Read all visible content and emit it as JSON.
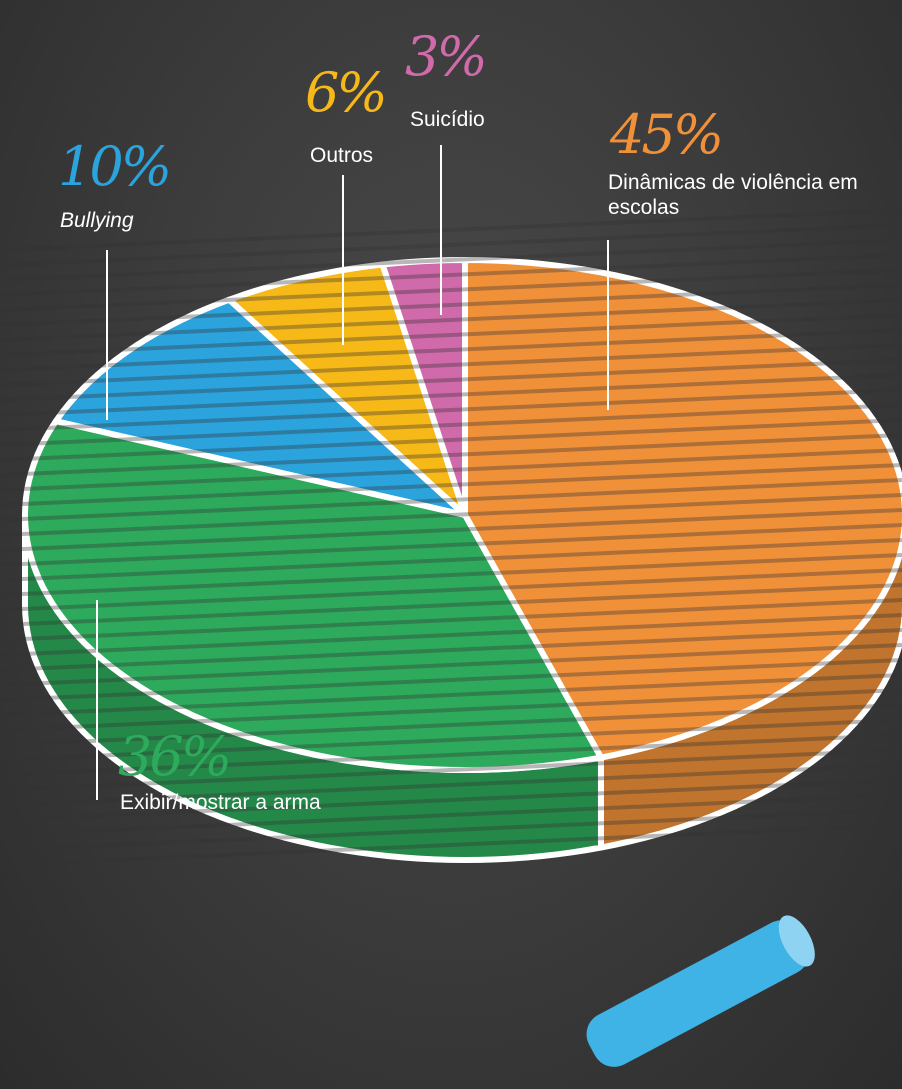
{
  "chart_data": {
    "type": "pie",
    "categories": [
      "Dinâmicas de violência em escolas",
      "Exibir/mostrar a arma",
      "Bullying",
      "Outros",
      "Suicídio"
    ],
    "values": [
      45,
      36,
      10,
      6,
      3
    ],
    "value_labels": [
      "45%",
      "36%",
      "10%",
      "6%",
      "3%"
    ],
    "colors": [
      "#f0913a",
      "#2daa5c",
      "#2ba3dc",
      "#f7b918",
      "#d16aaa"
    ]
  }
}
